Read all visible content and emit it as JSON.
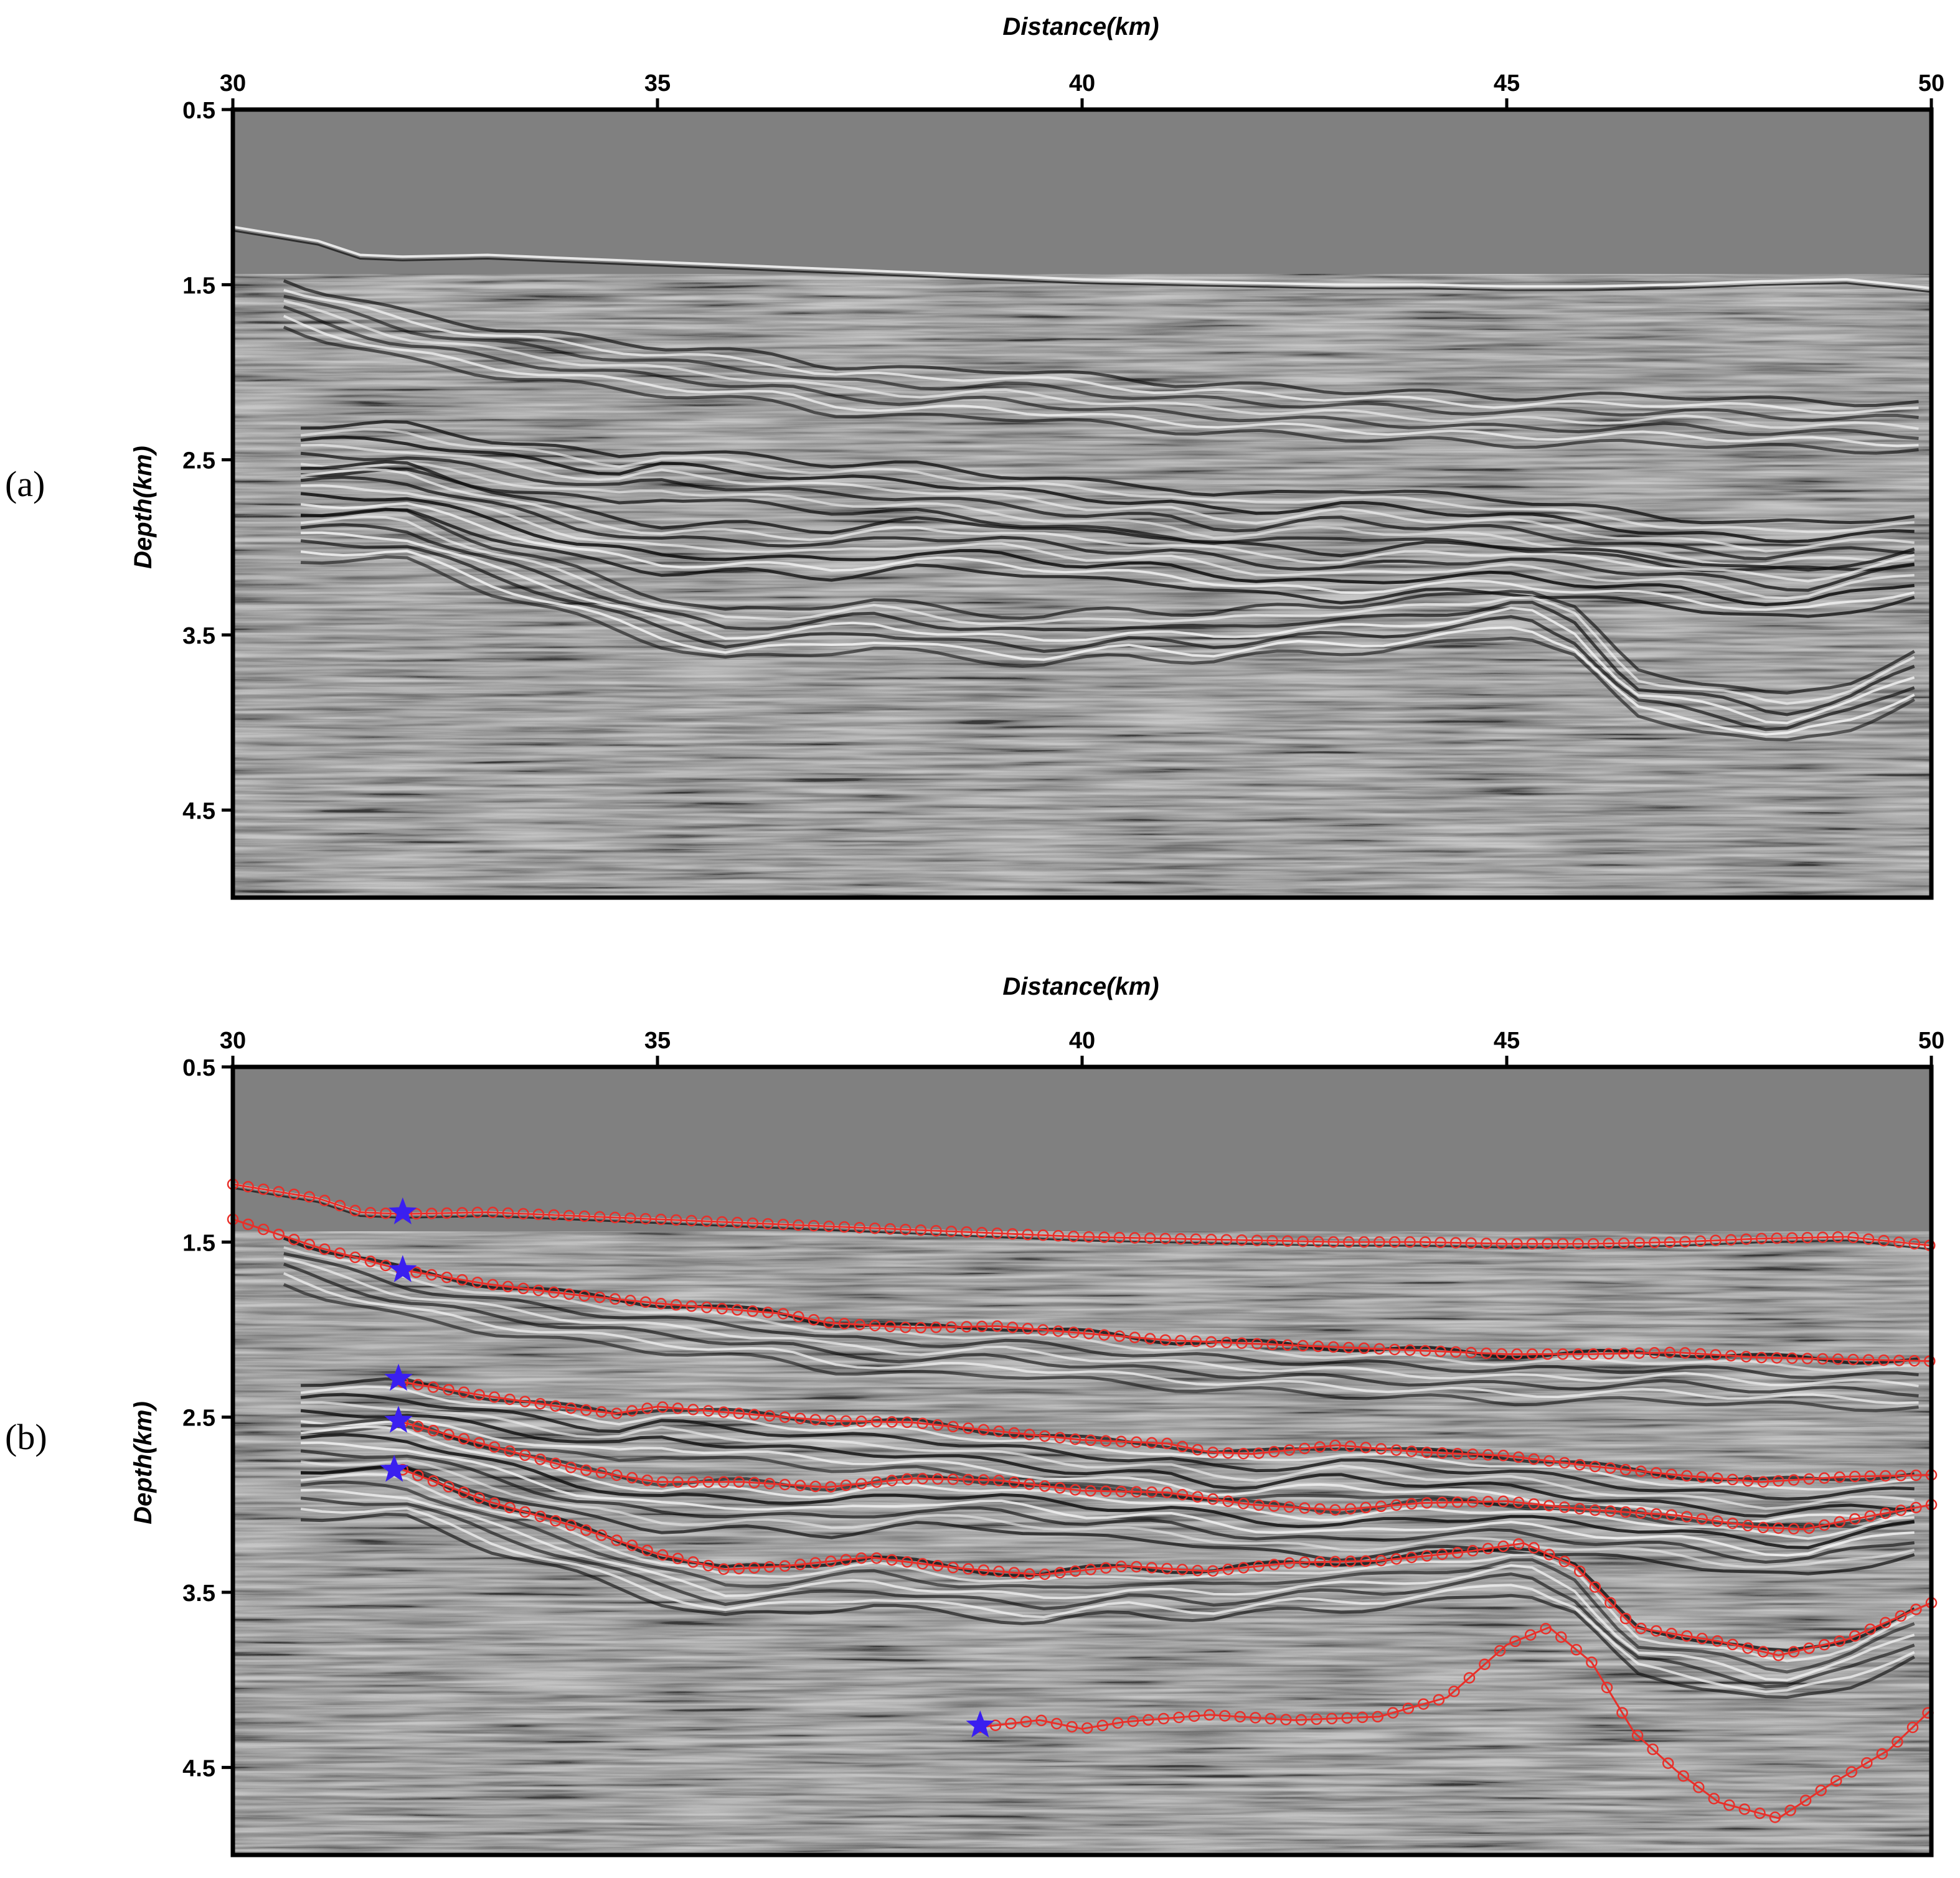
{
  "panels": [
    {
      "label": "(a)",
      "x_axis": {
        "title": "Distance(km)",
        "ticks": [
          "30",
          "35",
          "40",
          "45",
          "50"
        ]
      },
      "y_axis": {
        "title": "Depth(km)",
        "ticks": [
          "0.5",
          "1.5",
          "2.5",
          "3.5",
          "4.5"
        ]
      }
    },
    {
      "label": "(b)",
      "x_axis": {
        "title": "Distance(km)",
        "ticks": [
          "30",
          "35",
          "40",
          "45",
          "50"
        ]
      },
      "y_axis": {
        "title": "Depth(km)",
        "ticks": [
          "0.5",
          "1.5",
          "2.5",
          "3.5",
          "4.5"
        ]
      }
    }
  ],
  "chart_data": {
    "type": "scatter",
    "xlim": [
      30,
      50
    ],
    "ylim": [
      0.5,
      5.0
    ],
    "y_inverted": true,
    "colors": {
      "horizon_marker": "#e8302a",
      "seed_star": "#3a1ff0",
      "seismic_background": "#808080"
    },
    "seed_points": [
      {
        "x": 32.0,
        "y": 1.33
      },
      {
        "x": 32.0,
        "y": 1.66
      },
      {
        "x": 31.95,
        "y": 2.28
      },
      {
        "x": 31.95,
        "y": 2.52
      },
      {
        "x": 31.9,
        "y": 2.8
      },
      {
        "x": 38.8,
        "y": 4.26
      }
    ],
    "horizons": [
      {
        "x": [
          30,
          31,
          31.5,
          32,
          33,
          34,
          35,
          36,
          37,
          38,
          39,
          40,
          41,
          42,
          43,
          44,
          45,
          46,
          47,
          48,
          49,
          50
        ],
        "y": [
          1.17,
          1.25,
          1.33,
          1.34,
          1.33,
          1.35,
          1.37,
          1.39,
          1.41,
          1.43,
          1.45,
          1.47,
          1.48,
          1.49,
          1.5,
          1.5,
          1.51,
          1.51,
          1.5,
          1.48,
          1.47,
          1.52
        ]
      },
      {
        "x": [
          30,
          31,
          32,
          33,
          34,
          35,
          36,
          36.5,
          37,
          38,
          39,
          40,
          41,
          42,
          43,
          44,
          45,
          46,
          47,
          48,
          49,
          50
        ],
        "y": [
          1.37,
          1.53,
          1.66,
          1.74,
          1.8,
          1.85,
          1.89,
          1.91,
          1.96,
          1.99,
          1.98,
          2.02,
          2.06,
          2.08,
          2.1,
          2.12,
          2.14,
          2.14,
          2.13,
          2.16,
          2.17,
          2.18
        ]
      },
      {
        "x": [
          32,
          33,
          34,
          34.5,
          35,
          36,
          37,
          38,
          39,
          40,
          41,
          41.5,
          42,
          43,
          44,
          45,
          46,
          47,
          48,
          49,
          50
        ],
        "y": [
          2.3,
          2.38,
          2.45,
          2.48,
          2.44,
          2.48,
          2.52,
          2.53,
          2.58,
          2.63,
          2.65,
          2.7,
          2.71,
          2.66,
          2.7,
          2.72,
          2.78,
          2.83,
          2.87,
          2.84,
          2.83
        ]
      },
      {
        "x": [
          32,
          33,
          34,
          35,
          36,
          37,
          38,
          39,
          40,
          41,
          42,
          43,
          44,
          45,
          46,
          47,
          48,
          48.5,
          49,
          50
        ],
        "y": [
          2.53,
          2.66,
          2.79,
          2.87,
          2.87,
          2.9,
          2.85,
          2.86,
          2.92,
          2.93,
          3.0,
          3.03,
          2.99,
          2.98,
          3.03,
          3.06,
          3.13,
          3.14,
          3.09,
          3.0
        ]
      },
      {
        "x": [
          32,
          33,
          34,
          35,
          35.8,
          36.5,
          37.5,
          38.5,
          39.5,
          40.5,
          41.5,
          42.5,
          43.5,
          44.5,
          45.2,
          45.8,
          46.5,
          47.5,
          48.2,
          49,
          50
        ],
        "y": [
          2.8,
          2.98,
          3.12,
          3.28,
          3.37,
          3.35,
          3.3,
          3.36,
          3.4,
          3.35,
          3.38,
          3.33,
          3.32,
          3.27,
          3.22,
          3.35,
          3.7,
          3.78,
          3.86,
          3.77,
          3.56
        ]
      },
      {
        "x": [
          38.8,
          39.5,
          40.0,
          40.5,
          41.5,
          42.5,
          43.5,
          44.3,
          45.0,
          45.5,
          46.0,
          46.5,
          47.0,
          47.5,
          48.2,
          48.8,
          49.5,
          50.0
        ],
        "y": [
          4.27,
          4.23,
          4.28,
          4.24,
          4.2,
          4.23,
          4.21,
          4.1,
          3.8,
          3.7,
          3.9,
          4.3,
          4.52,
          4.7,
          4.79,
          4.6,
          4.4,
          4.17
        ]
      }
    ]
  }
}
